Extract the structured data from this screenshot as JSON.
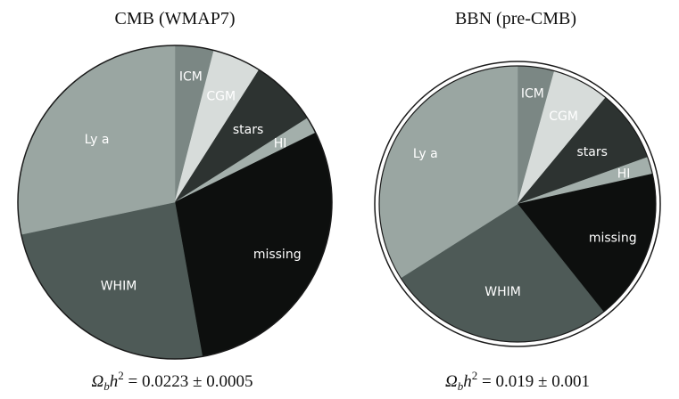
{
  "chart_data": [
    {
      "type": "pie",
      "title": "CMB (WMAP7)",
      "footer": "Ω_b h² = 0.0223 ± 0.0005",
      "footer_parts": {
        "sym": "Ω",
        "sub": "b",
        "var": "h",
        "sup": "2",
        "rest": " = 0.0223 ± 0.0005"
      },
      "start_angle_deg": 0,
      "direction": "clockwise",
      "slices": [
        {
          "name": "ICM",
          "value": 4.0,
          "color": "#7b8784",
          "label_color": "#ffffff"
        },
        {
          "name": "CGM",
          "value": 5.0,
          "color": "#d7dcda",
          "label_color": "#ffffff"
        },
        {
          "name": "stars",
          "value": 7.0,
          "color": "#2d3331",
          "label_color": "#ffffff"
        },
        {
          "name": "HI",
          "value": 1.7,
          "color": "#a3afab",
          "label_color": "#ffffff"
        },
        {
          "name": "missing",
          "value": 29.5,
          "color": "#0d0f0e",
          "label_color": "#ffffff"
        },
        {
          "name": "WHIM",
          "value": 24.5,
          "color": "#4e5a57",
          "label_color": "#ffffff"
        },
        {
          "name": "Ly a",
          "value": 28.3,
          "color": "#9aa6a2",
          "label_color": "#ffffff"
        }
      ]
    },
    {
      "type": "pie",
      "title": "BBN (pre-CMB)",
      "footer": "Ω_b h² = 0.019 ± 0.001",
      "footer_parts": {
        "sym": "Ω",
        "sub": "b",
        "var": "h",
        "sup": "2",
        "rest": " = 0.019 ± 0.001"
      },
      "start_angle_deg": 0,
      "direction": "clockwise",
      "slices": [
        {
          "name": "ICM",
          "value": 4.3,
          "color": "#7b8784",
          "label_color": "#ffffff"
        },
        {
          "name": "CGM",
          "value": 6.7,
          "color": "#d7dcda",
          "label_color": "#ffffff"
        },
        {
          "name": "stars",
          "value": 8.5,
          "color": "#2d3331",
          "label_color": "#ffffff"
        },
        {
          "name": "HI",
          "value": 2.0,
          "color": "#a3afab",
          "label_color": "#ffffff"
        },
        {
          "name": "missing",
          "value": 17.8,
          "color": "#0d0f0e",
          "label_color": "#ffffff"
        },
        {
          "name": "WHIM",
          "value": 26.7,
          "color": "#4e5a57",
          "label_color": "#ffffff"
        },
        {
          "name": "Ly a",
          "value": 34.0,
          "color": "#9aa6a2",
          "label_color": "#ffffff"
        }
      ]
    }
  ]
}
